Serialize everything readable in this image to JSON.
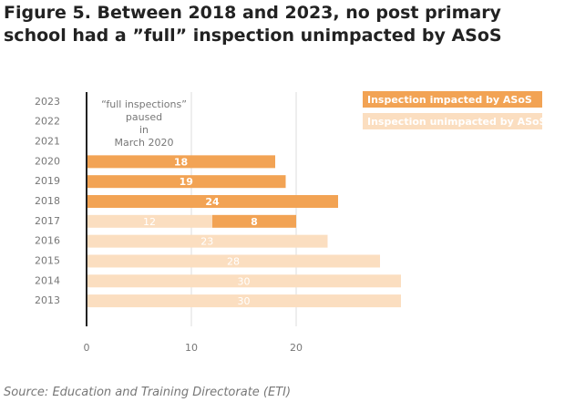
{
  "chart_data": {
    "type": "stacked-barh",
    "title": "Figure 5. Between 2018 and 2023, no post primary school had a ”full” inspection unimpacted by ASoS",
    "source": "Source: Education and Training Directorate (ETI)",
    "annotation": [
      "“full inspections”",
      "paused",
      "in",
      "March 2020"
    ],
    "categories": [
      "2023",
      "2022",
      "2021",
      "2020",
      "2019",
      "2018",
      "2017",
      "2016",
      "2015",
      "2014",
      "2013"
    ],
    "series": [
      {
        "name": "Inspection impacted by ASoS",
        "color": "#f2a354",
        "values": [
          null,
          null,
          null,
          18,
          19,
          24,
          8,
          null,
          null,
          null,
          null
        ]
      },
      {
        "name": "Inspection unimpacted by ASoS",
        "color": "#fbdec0",
        "values": [
          null,
          null,
          null,
          null,
          null,
          null,
          12,
          23,
          28,
          30,
          30
        ]
      }
    ],
    "stack_order": [
      1,
      0
    ],
    "xlim": [
      0,
      30
    ],
    "xticks": [
      0,
      10,
      20
    ],
    "legend": "top-right"
  }
}
